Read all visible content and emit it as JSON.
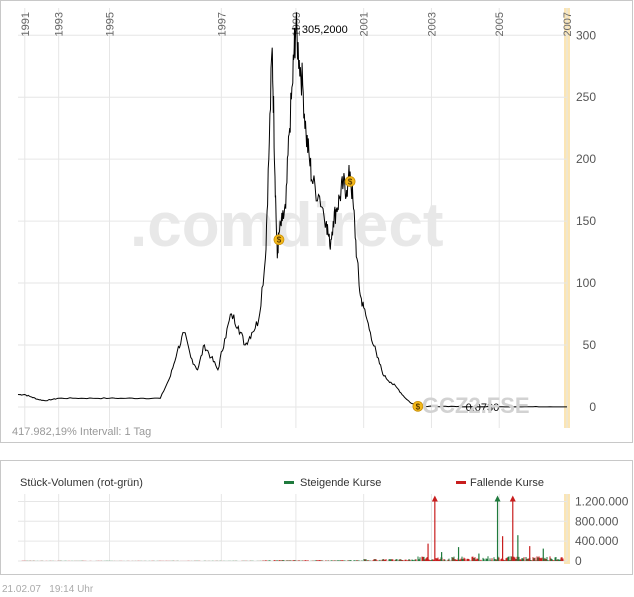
{
  "chart_data": [
    {
      "type": "line",
      "x_tick_labels": [
        "1991",
        "1993",
        "1995",
        "1997",
        "1999",
        "2001",
        "2003",
        "2005",
        "2007"
      ],
      "x_tick_years": [
        1991.0,
        1992.0,
        1993.5,
        1996.8,
        1999.0,
        2001.0,
        2003.0,
        2005.0,
        2007.0
      ],
      "y_ticks": [
        0,
        50,
        100,
        150,
        200,
        250,
        300
      ],
      "y_tick_labels": [
        "0",
        "50",
        "100",
        "150",
        "200",
        "250",
        "300"
      ],
      "xlim": [
        1990.8,
        2007.0
      ],
      "ylim": [
        -17,
        322
      ],
      "grid": true,
      "series": [
        {
          "x": [
            1990.8,
            1991.0,
            1991.2,
            1991.4,
            1991.6,
            1991.8,
            1992.0,
            1992.5,
            1993.0,
            1993.5,
            1994.0,
            1994.5,
            1995.0,
            1995.3,
            1995.5,
            1995.7,
            1995.9,
            1996.1,
            1996.3,
            1996.5,
            1996.7,
            1996.9,
            1997.1,
            1997.3,
            1997.5,
            1997.7,
            1997.9,
            1998.1,
            1998.2,
            1998.3,
            1998.35,
            1998.4,
            1998.45,
            1998.5,
            1998.6,
            1998.7,
            1998.8,
            1998.9,
            1998.95,
            1999.0,
            1999.1,
            1999.2,
            1999.3,
            1999.4,
            1999.5,
            1999.7,
            1999.9,
            2000.0,
            2000.1,
            2000.2,
            2000.3,
            2000.4,
            2000.5,
            2000.6,
            2000.7,
            2000.8,
            2000.9,
            2001.0,
            2001.2,
            2001.4,
            2001.6,
            2001.8,
            2002.0,
            2002.2,
            2002.4,
            2002.6,
            2002.8,
            2003.0,
            2003.5,
            2004.0,
            2004.5,
            2005.0,
            2005.5,
            2006.0,
            2006.5,
            2007.0
          ],
          "y": [
            10,
            10,
            8,
            6,
            5,
            6,
            7,
            7,
            7,
            7,
            7,
            7,
            7,
            25,
            45,
            60,
            40,
            30,
            50,
            40,
            30,
            55,
            75,
            65,
            50,
            60,
            70,
            120,
            200,
            290,
            230,
            170,
            120,
            140,
            150,
            160,
            220,
            260,
            290,
            305,
            280,
            260,
            220,
            200,
            180,
            170,
            150,
            130,
            150,
            160,
            170,
            180,
            175,
            190,
            160,
            120,
            90,
            80,
            60,
            40,
            25,
            20,
            15,
            8,
            3,
            1,
            0.5,
            0.5,
            0.3,
            0.2,
            0.1,
            0.1,
            0.1,
            0.1,
            0.1,
            0.07
          ]
        }
      ],
      "annotations": [
        {
          "x": 1999.0,
          "y": 305.2,
          "text": "305,2000"
        },
        {
          "x": 2002.6,
          "y": 0.07,
          "text": "0,0730"
        }
      ],
      "markers": [
        {
          "x": 1998.5,
          "y": 135,
          "label": "$"
        },
        {
          "x": 2000.6,
          "y": 182,
          "label": "$"
        },
        {
          "x": 2002.6,
          "y": 0.5,
          "label": "$"
        }
      ],
      "watermark": ".comdirect",
      "symbol": "GCZ2.FSE",
      "info_text": "417.982,19% Intervall: 1 Tag"
    },
    {
      "type": "bar",
      "title": "Stück-Volumen (rot-grün)",
      "legend": [
        {
          "name": "Steigende Kurse",
          "color": "#1f7a3d"
        },
        {
          "name": "Fallende Kurse",
          "color": "#c81e1e"
        }
      ],
      "y_ticks": [
        0,
        400000,
        800000,
        1200000
      ],
      "y_tick_labels": [
        "0",
        "400.000",
        "800.000",
        "1.200.000"
      ],
      "ylim": [
        0,
        1350000
      ],
      "spikes": [
        {
          "x": 2002.9,
          "value": 350000,
          "rising": false
        },
        {
          "x": 2003.1,
          "value": 1300000,
          "rising": false,
          "arrow": true
        },
        {
          "x": 2003.3,
          "value": 180000,
          "rising": true
        },
        {
          "x": 2003.8,
          "value": 280000,
          "rising": true
        },
        {
          "x": 2004.4,
          "value": 150000,
          "rising": true
        },
        {
          "x": 2004.95,
          "value": 1300000,
          "rising": true,
          "arrow": true
        },
        {
          "x": 2005.1,
          "value": 500000,
          "rising": false
        },
        {
          "x": 2005.4,
          "value": 1300000,
          "rising": false,
          "arrow": true
        },
        {
          "x": 2005.55,
          "value": 520000,
          "rising": true
        },
        {
          "x": 2005.9,
          "value": 300000,
          "rising": false
        },
        {
          "x": 2006.3,
          "value": 250000,
          "rising": true
        }
      ]
    }
  ],
  "footer": {
    "date": "21.02.07",
    "time": "19:14 Uhr"
  }
}
